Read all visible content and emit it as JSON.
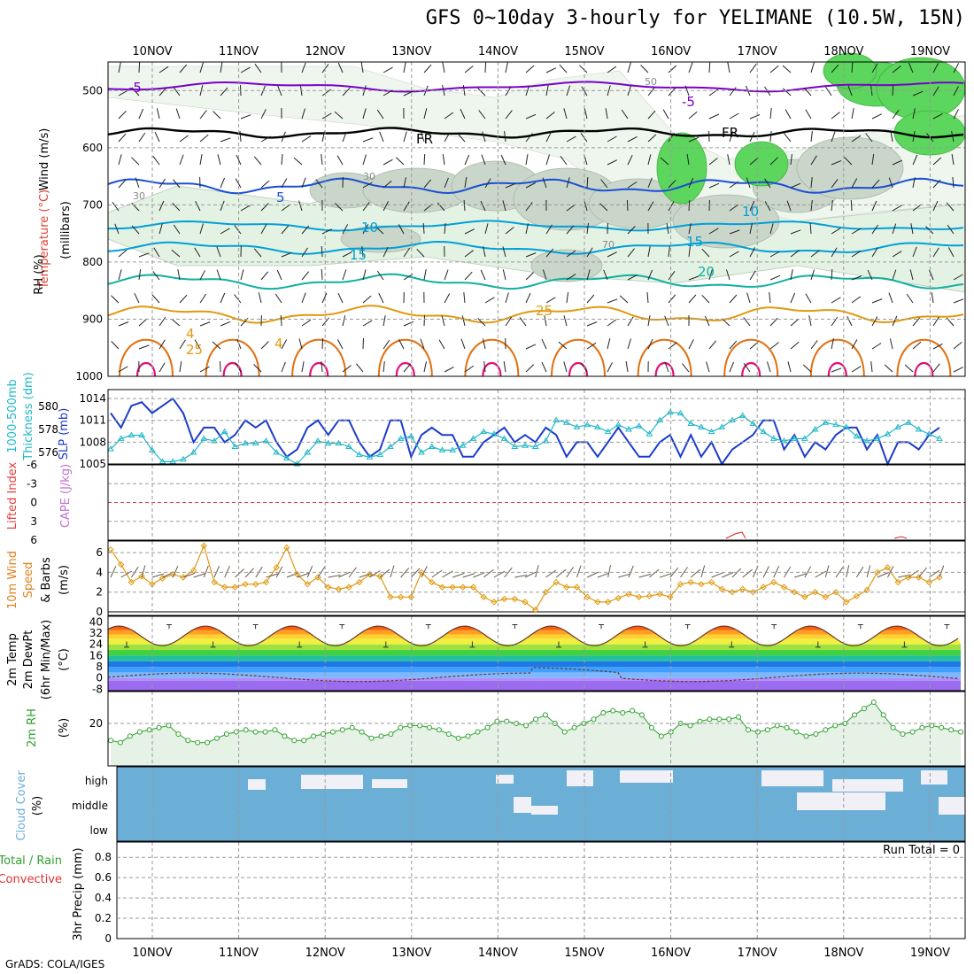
{
  "title": "GFS 0~10day 3-hourly for YELIMANE (10.5W, 15N)",
  "credit": "GrADS: COLA/IGES",
  "run_total_label": "Run Total = 0",
  "dates": [
    "10NOV",
    "11NOV",
    "12NOV",
    "13NOV",
    "14NOV",
    "15NOV",
    "16NOV",
    "17NOV",
    "18NOV",
    "19NOV"
  ],
  "colors": {
    "temp_cold": "#7a00c8",
    "freezing": "#000000",
    "blue": "#1a4fd6",
    "cyan": "#00a0d8",
    "teal": "#10b0a0",
    "orange": "#e09a10",
    "deep_orange": "#e07010",
    "magenta": "#e0107a",
    "slp": "#1a3ccc",
    "thickness": "#20b8c8",
    "rh_fill": "#5cd65c",
    "cloud": "#6baed6",
    "rh2m": "#30a030"
  },
  "panels": {
    "upper": {
      "labels": [
        "Wind (m/s)",
        "Temperature (°C)",
        "RH (%)",
        "(millibars)"
      ],
      "yticks": [
        "500",
        "600",
        "700",
        "800",
        "900",
        "1000"
      ],
      "contour_labels": [
        "-5",
        "-5",
        "FR",
        "FR",
        "5",
        "10",
        "10",
        "15",
        "15",
        "20",
        "25",
        "25",
        "4",
        "4",
        "30",
        "50",
        "70",
        "30"
      ]
    },
    "slp": {
      "labels": [
        "1000-500mb",
        "Thickness (dm)",
        "SLP (mb)"
      ],
      "left_ticks": [
        "580",
        "578",
        "576"
      ],
      "right_ticks": [
        "1014",
        "1011",
        "1008",
        "1005"
      ]
    },
    "cape": {
      "labels": [
        "Lifted Index",
        "CAPE (J/kg)"
      ],
      "yticks": [
        "-6",
        "-3",
        "0",
        "3",
        "6"
      ]
    },
    "wind10m": {
      "labels": [
        "10m Wind",
        "Speed",
        "& Barbs",
        "(m/s)"
      ],
      "yticks": [
        "6",
        "4",
        "2",
        "0"
      ]
    },
    "temp2m": {
      "labels": [
        "2m Temp",
        "2m DewPt",
        "(6hr Min/Max)",
        "(°C)"
      ],
      "yticks": [
        "40",
        "32",
        "24",
        "16",
        "8",
        "0",
        "-8"
      ]
    },
    "rh2m": {
      "labels": [
        "2m RH",
        "(%)"
      ],
      "yticks": [
        "20"
      ]
    },
    "cloud": {
      "labels": [
        "Cloud Cover",
        "(%)"
      ],
      "levels": [
        "high",
        "middle",
        "low"
      ]
    },
    "precip": {
      "labels": [
        "Total / Rain",
        "Convective",
        "3hr Precip (mm)"
      ],
      "yticks": [
        "0.8",
        "0.6",
        "0.4",
        "0.2",
        "0"
      ]
    }
  },
  "chart_data": [
    {
      "type": "line",
      "title": "10m Wind Speed",
      "ylabel": "(m/s)",
      "ylim": [
        0,
        7
      ],
      "x_start": "10NOV 00Z",
      "x_step_hours": 3,
      "series": [
        {
          "name": "Speed",
          "values": [
            6.3,
            4.8,
            3.0,
            3.6,
            2.8,
            3.4,
            3.8,
            3.5,
            4.2,
            6.7,
            3.0,
            2.5,
            2.5,
            2.8,
            2.8,
            3.0,
            4.5,
            6.5,
            3.8,
            2.8,
            3.5,
            2.5,
            2.3,
            2.5,
            3.0,
            3.8,
            3.6,
            1.5,
            1.5,
            1.5,
            4.0,
            3.0,
            2.5,
            2.5,
            2.5,
            2.5,
            1.5,
            1.0,
            1.3,
            1.3,
            1.0,
            0.2,
            2.0,
            3.0,
            2.5,
            2.5,
            1.5,
            1.0,
            1.0,
            1.4,
            1.8,
            1.5,
            1.6,
            1.8,
            1.5,
            2.8,
            3.0,
            2.8,
            3.0,
            2.3,
            2.0,
            2.3,
            2.0,
            2.5,
            3.0,
            2.5,
            2.0,
            1.5,
            2.0,
            1.5,
            2.0,
            1.0,
            1.6,
            2.2,
            4.0,
            4.5,
            3.0,
            3.5,
            3.5,
            3.0,
            3.5
          ]
        }
      ]
    },
    {
      "type": "line",
      "title": "SLP",
      "ylabel": "SLP (mb)",
      "ylim": [
        1005,
        1015
      ],
      "x_start": "10NOV 00Z",
      "x_step_hours": 3,
      "series": [
        {
          "name": "SLP",
          "values": [
            1012,
            1010,
            1013,
            1013.5,
            1012,
            1013,
            1014,
            1012,
            1008,
            1010,
            1010,
            1008,
            1009,
            1011,
            1010,
            1011,
            1008,
            1006,
            1007,
            1010,
            1011,
            1009,
            1011,
            1011,
            1008,
            1006,
            1007,
            1011,
            1011,
            1006,
            1009,
            1010,
            1009,
            1009,
            1006,
            1006,
            1008,
            1009,
            1010,
            1008,
            1009,
            1008,
            1010,
            1009,
            1006,
            1008,
            1008,
            1006,
            1008,
            1010,
            1008,
            1006,
            1006,
            1008,
            1009,
            1006,
            1009,
            1006,
            1008,
            1005,
            1007,
            1008,
            1009,
            1011,
            1011,
            1007,
            1009,
            1006,
            1008,
            1007,
            1009,
            1010,
            1010,
            1007,
            1009,
            1005,
            1008,
            1008,
            1007,
            1009,
            1010
          ]
        },
        {
          "name": "Thickness",
          "values": [
            576.3,
            577.2,
            577.5,
            577.5,
            576.2,
            575.2,
            575.2,
            575.4,
            576.0,
            577.2,
            577.0,
            577.8,
            576.5,
            576.8,
            576.8,
            577.0,
            576.0,
            575.5,
            575.0,
            576.0,
            577.0,
            576.8,
            576.8,
            576.5,
            575.8,
            575.6,
            575.8,
            576.5,
            577.2,
            577.4,
            576.0,
            576.5,
            576.2,
            576.2,
            576.6,
            577.2,
            577.8,
            577.6,
            577.2,
            576.5,
            576.6,
            576.5,
            577.0,
            578.8,
            578.6,
            578.2,
            578.4,
            578.2,
            577.8,
            578.4,
            578.0,
            578.3,
            577.6,
            578.8,
            579.5,
            579.4,
            578.5,
            578.2,
            577.8,
            578.2,
            578.8,
            579.2,
            578.5,
            577.8,
            577.2,
            577.0,
            577.2,
            577.2,
            578.0,
            578.6,
            578.4,
            578.2,
            577.4,
            577.0,
            577.2,
            577.6,
            578.2,
            578.6,
            578.0,
            577.6,
            577.2
          ]
        }
      ]
    },
    {
      "type": "area",
      "title": "2m RH",
      "ylabel": "(%)",
      "ylim": [
        0,
        35
      ],
      "x_start": "10NOV 00Z",
      "x_step_hours": 3,
      "series": [
        {
          "name": "2m RH",
          "values": [
            12,
            11,
            14,
            16,
            17,
            18,
            19,
            15,
            12,
            11,
            11,
            13,
            15,
            16,
            17,
            16,
            16,
            17,
            14,
            12,
            12,
            14,
            15,
            16,
            17,
            18,
            16,
            13,
            14,
            15,
            18,
            19,
            19,
            18,
            17,
            15,
            13,
            14,
            16,
            18,
            21,
            21,
            20,
            19,
            22,
            24,
            20,
            16,
            18,
            20,
            22,
            25,
            26,
            25,
            26,
            24,
            18,
            14,
            16,
            20,
            19,
            21,
            22,
            22,
            22,
            23,
            17,
            16,
            17,
            19,
            18,
            16,
            14,
            15,
            17,
            19,
            20,
            24,
            27,
            30,
            24,
            18,
            15,
            16,
            18,
            19,
            18,
            17,
            16
          ]
        }
      ]
    },
    {
      "type": "bar",
      "title": "3hr Precip",
      "ylabel": "3hr Precip (mm)",
      "ylim": [
        0,
        1
      ],
      "categories": [],
      "values": []
    },
    {
      "type": "heatmap",
      "title": "Cloud Cover",
      "categories": [
        "high",
        "middle",
        "low"
      ]
    }
  ]
}
